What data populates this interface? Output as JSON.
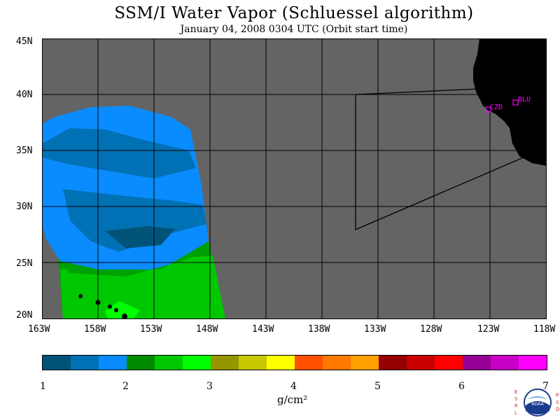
{
  "title": "SSM/I Water Vapor (Schluessel algorithm)",
  "subtitle": "January 04, 2008  0304 UTC  (Orbit start time)",
  "map": {
    "lat_labels": [
      "45N",
      "40N",
      "35N",
      "30N",
      "25N",
      "20N"
    ],
    "lon_labels": [
      "163W",
      "158W",
      "153W",
      "148W",
      "143W",
      "138W",
      "133W",
      "128W",
      "123W",
      "118W"
    ],
    "stations": [
      "CZD",
      "BLU"
    ],
    "colors": {
      "background": "#646464",
      "land": "#000000",
      "grid": "#000000",
      "station": "#ff00ff"
    }
  },
  "colorbar": {
    "colors": [
      "#005478",
      "#0071b4",
      "#0a8cff",
      "#008c00",
      "#00c800",
      "#00ff00",
      "#969600",
      "#c8c800",
      "#ffff00",
      "#ff5000",
      "#ff7800",
      "#ffa000",
      "#960000",
      "#c80000",
      "#ff0000",
      "#960096",
      "#c800c8",
      "#ff00ff"
    ],
    "ticks": [
      "1",
      "2",
      "3",
      "4",
      "5",
      "6",
      "7"
    ],
    "unit": "g/cm²"
  },
  "logo": {
    "text": "NOAA",
    "left_letters": "ESRL",
    "right_letters": "PSD"
  }
}
